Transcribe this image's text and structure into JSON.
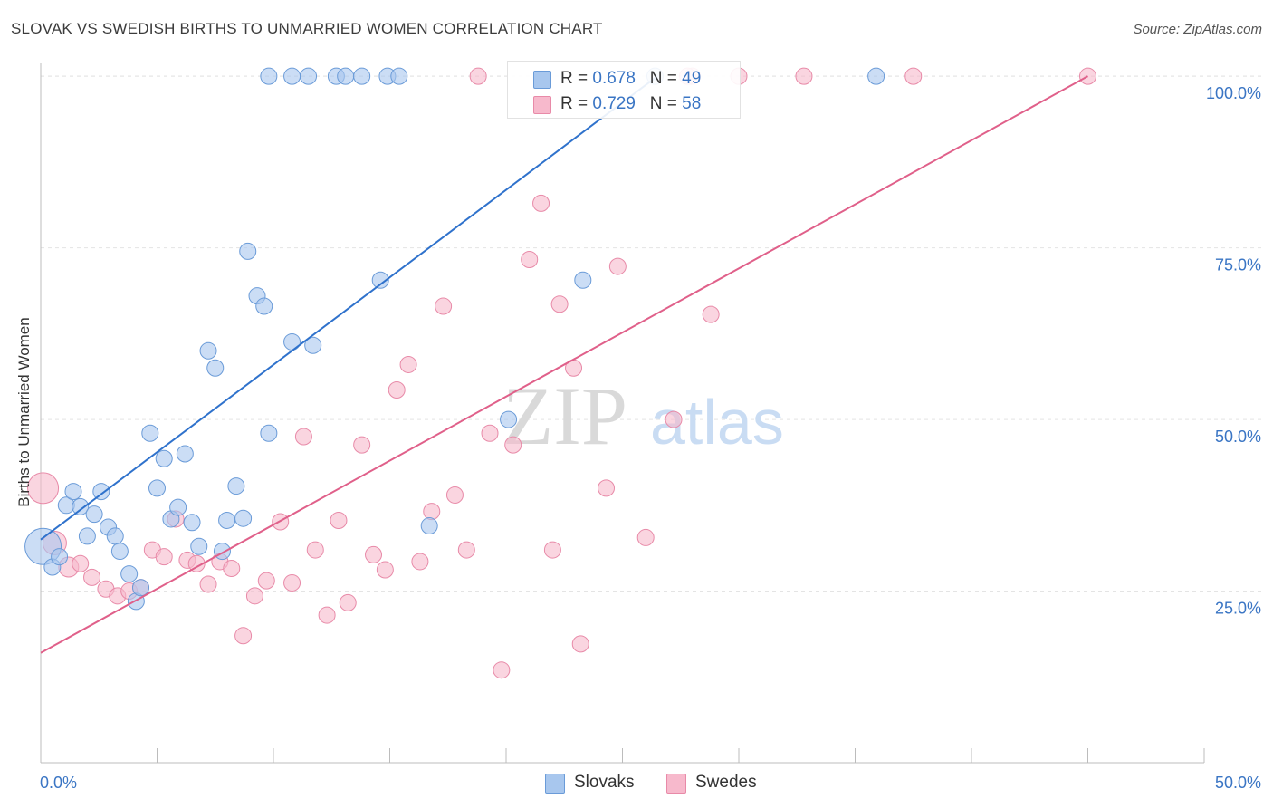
{
  "chart_data": {
    "type": "scatter",
    "title": "SLOVAK VS SWEDISH BIRTHS TO UNMARRIED WOMEN CORRELATION CHART",
    "source": "Source: ZipAtlas.com",
    "xlabel": "",
    "ylabel": "Births to Unmarried Women",
    "xlim": [
      0,
      50
    ],
    "ylim": [
      0,
      102
    ],
    "x_tick_labels": [
      "0.0%",
      "50.0%"
    ],
    "y_ticks": [
      {
        "value": 25,
        "label": "25.0%"
      },
      {
        "value": 50,
        "label": "50.0%"
      },
      {
        "value": 75,
        "label": "75.0%"
      },
      {
        "value": 100,
        "label": "100.0%"
      }
    ],
    "watermark": {
      "part1": "ZIP",
      "part2": "atlas"
    },
    "colors": {
      "slovaks_fill": "#a8c7ee",
      "slovaks_stroke": "#6a9bd8",
      "slovaks_line": "#2f72cc",
      "swedes_fill": "#f7b9cc",
      "swedes_stroke": "#e88aa8",
      "swedes_line": "#e0608a",
      "grid": "#e4e4e4",
      "axis_label": "#3a75c4"
    },
    "legend": {
      "r_label": "R = ",
      "n_label": "N = ",
      "entries": [
        {
          "name": "Slovaks",
          "r": "0.678",
          "n": "49"
        },
        {
          "name": "Swedes",
          "r": "0.729",
          "n": "58"
        }
      ]
    },
    "series": [
      {
        "name": "Slovaks",
        "trend": [
          [
            0,
            32.5
          ],
          [
            26.5,
            100
          ]
        ],
        "points": [
          [
            0.1,
            31.5,
            20
          ],
          [
            0.5,
            28.5,
            9
          ],
          [
            0.8,
            30,
            9
          ],
          [
            1.1,
            37.5,
            9
          ],
          [
            1.4,
            39.5,
            9
          ],
          [
            1.7,
            37.3,
            9
          ],
          [
            2.0,
            33,
            9
          ],
          [
            2.3,
            36.2,
            9
          ],
          [
            2.6,
            39.5,
            9
          ],
          [
            2.9,
            34.3,
            9
          ],
          [
            3.2,
            33,
            9
          ],
          [
            3.4,
            30.8,
            9
          ],
          [
            3.8,
            27.5,
            9
          ],
          [
            4.1,
            23.5,
            9
          ],
          [
            4.3,
            25.5,
            9
          ],
          [
            4.7,
            48,
            9
          ],
          [
            5.0,
            40,
            9
          ],
          [
            5.3,
            44.3,
            9
          ],
          [
            5.6,
            35.5,
            9
          ],
          [
            5.9,
            37.2,
            9
          ],
          [
            6.2,
            45,
            9
          ],
          [
            6.5,
            35,
            9
          ],
          [
            6.8,
            31.5,
            9
          ],
          [
            7.2,
            60,
            9
          ],
          [
            7.5,
            57.5,
            9
          ],
          [
            7.8,
            30.8,
            9
          ],
          [
            8.0,
            35.3,
            9
          ],
          [
            8.4,
            40.3,
            9
          ],
          [
            8.7,
            35.6,
            9
          ],
          [
            8.9,
            74.5,
            9
          ],
          [
            9.3,
            68,
            9
          ],
          [
            9.6,
            66.5,
            9
          ],
          [
            9.8,
            48,
            9
          ],
          [
            10.8,
            61.3,
            9
          ],
          [
            11.7,
            60.8,
            9
          ],
          [
            9.8,
            100,
            9
          ],
          [
            10.8,
            100,
            9
          ],
          [
            11.5,
            100,
            9
          ],
          [
            12.7,
            100,
            9
          ],
          [
            13.1,
            100,
            9
          ],
          [
            13.8,
            100,
            9
          ],
          [
            14.9,
            100,
            9
          ],
          [
            15.4,
            100,
            9
          ],
          [
            14.6,
            70.3,
            9
          ],
          [
            16.7,
            34.5,
            9
          ],
          [
            20.1,
            50,
            9
          ],
          [
            23.3,
            70.3,
            9
          ],
          [
            26.4,
            100,
            9
          ],
          [
            35.9,
            100,
            9
          ]
        ]
      },
      {
        "name": "Swedes",
        "trend": [
          [
            0,
            16
          ],
          [
            45,
            100
          ]
        ],
        "points": [
          [
            0.1,
            40,
            17
          ],
          [
            0.6,
            32,
            13
          ],
          [
            1.2,
            28.5,
            11
          ],
          [
            1.7,
            29,
            9
          ],
          [
            2.2,
            27,
            9
          ],
          [
            2.8,
            25.3,
            9
          ],
          [
            3.3,
            24.3,
            9
          ],
          [
            3.8,
            25,
            9
          ],
          [
            4.3,
            25.5,
            9
          ],
          [
            4.8,
            31,
            9
          ],
          [
            5.3,
            30,
            9
          ],
          [
            5.8,
            35.5,
            9
          ],
          [
            6.3,
            29.5,
            9
          ],
          [
            6.7,
            29,
            9
          ],
          [
            7.2,
            26,
            9
          ],
          [
            7.7,
            29.3,
            9
          ],
          [
            8.2,
            28.3,
            9
          ],
          [
            8.7,
            18.5,
            9
          ],
          [
            9.2,
            24.3,
            9
          ],
          [
            9.7,
            26.5,
            9
          ],
          [
            10.3,
            35.1,
            9
          ],
          [
            10.8,
            26.2,
            9
          ],
          [
            11.3,
            47.5,
            9
          ],
          [
            11.8,
            31,
            9
          ],
          [
            12.3,
            21.5,
            9
          ],
          [
            12.8,
            35.3,
            9
          ],
          [
            13.2,
            23.3,
            9
          ],
          [
            13.8,
            46.3,
            9
          ],
          [
            14.3,
            30.3,
            9
          ],
          [
            14.8,
            28.1,
            9
          ],
          [
            15.3,
            54.3,
            9
          ],
          [
            15.8,
            58,
            9
          ],
          [
            16.3,
            29.3,
            9
          ],
          [
            16.8,
            36.6,
            9
          ],
          [
            17.3,
            66.5,
            9
          ],
          [
            17.8,
            39,
            9
          ],
          [
            18.3,
            31,
            9
          ],
          [
            18.8,
            100,
            9
          ],
          [
            19.3,
            48,
            9
          ],
          [
            19.8,
            13.5,
            9
          ],
          [
            20.3,
            46.3,
            9
          ],
          [
            21.0,
            73.3,
            9
          ],
          [
            21.5,
            81.5,
            9
          ],
          [
            22.0,
            31,
            9
          ],
          [
            22.3,
            66.8,
            9
          ],
          [
            22.9,
            57.5,
            9
          ],
          [
            23.2,
            17.3,
            9
          ],
          [
            24.3,
            40,
            9
          ],
          [
            24.8,
            72.3,
            9
          ],
          [
            26.0,
            32.8,
            9
          ],
          [
            27.2,
            50,
            9
          ],
          [
            28.0,
            100,
            9
          ],
          [
            28.8,
            65.3,
            9
          ],
          [
            30.0,
            100,
            9
          ],
          [
            32.8,
            100,
            9
          ],
          [
            37.5,
            100,
            9
          ],
          [
            45.0,
            100,
            9
          ],
          [
            27.8,
            100,
            9
          ]
        ]
      }
    ]
  }
}
